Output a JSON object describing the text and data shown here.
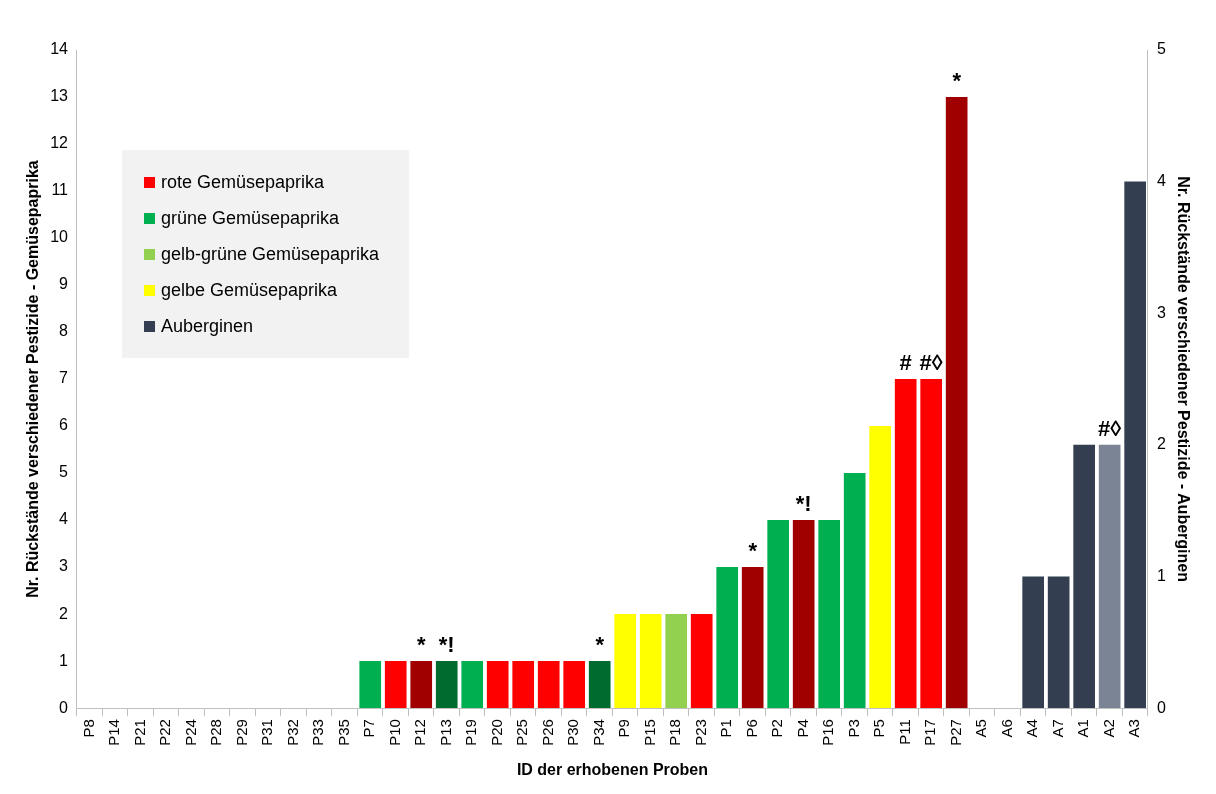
{
  "chart_data": {
    "type": "bar",
    "xlabel": "ID der erhobenen Proben",
    "ylabel": "Nr. Rückstände verschiedener Pestizide - Gemüsepaprika",
    "y2label": "Nr. Rückstände verschiedener Pestizide - Auberginen",
    "categories": [
      "P8",
      "P14",
      "P21",
      "P22",
      "P24",
      "P28",
      "P29",
      "P31",
      "P32",
      "P33",
      "P35",
      "P7",
      "P10",
      "P12",
      "P13",
      "P19",
      "P20",
      "P25",
      "P26",
      "P30",
      "P34",
      "P9",
      "P15",
      "P18",
      "P23",
      "P1",
      "P6",
      "P2",
      "P4",
      "P16",
      "P3",
      "P5",
      "P11",
      "P17",
      "P27",
      "A5",
      "A6",
      "A4",
      "A7",
      "A1",
      "A2",
      "A3"
    ],
    "series": [
      {
        "name": "rote Gemüsepaprika",
        "color": "#ff0000",
        "values": [
          null,
          null,
          null,
          null,
          null,
          null,
          null,
          null,
          null,
          null,
          null,
          null,
          1,
          1,
          null,
          null,
          1,
          1,
          1,
          1,
          null,
          null,
          null,
          null,
          2,
          null,
          3,
          null,
          4,
          null,
          null,
          null,
          7,
          7,
          13,
          null,
          null,
          null,
          null,
          null,
          null,
          null
        ],
        "colors": [
          null,
          null,
          null,
          null,
          null,
          null,
          null,
          null,
          null,
          null,
          null,
          null,
          "#ff0000",
          "#a00000",
          null,
          null,
          "#ff0000",
          "#ff0000",
          "#ff0000",
          "#ff0000",
          null,
          null,
          null,
          null,
          "#ff0000",
          null,
          "#a00000",
          null,
          "#a00000",
          null,
          null,
          null,
          "#ff0000",
          "#ff0000",
          "#a00000",
          null,
          null,
          null,
          null,
          null,
          null,
          null
        ]
      },
      {
        "name": "grüne Gemüsepaprika",
        "color": "#00b050",
        "values": [
          null,
          null,
          null,
          null,
          null,
          null,
          null,
          null,
          null,
          null,
          null,
          1,
          null,
          null,
          1,
          1,
          null,
          null,
          null,
          null,
          1,
          null,
          null,
          null,
          null,
          3,
          null,
          4,
          null,
          4,
          5,
          null,
          null,
          null,
          null,
          null,
          null,
          null,
          null,
          null,
          null,
          null
        ],
        "colors": [
          null,
          null,
          null,
          null,
          null,
          null,
          null,
          null,
          null,
          null,
          null,
          "#00b050",
          null,
          null,
          "#006b2e",
          "#00b050",
          null,
          null,
          null,
          null,
          "#006b2e",
          null,
          null,
          null,
          null,
          "#00b050",
          null,
          "#00b050",
          null,
          "#00b050",
          "#00b050",
          null,
          null,
          null,
          null,
          null,
          null,
          null,
          null,
          null,
          null,
          null
        ]
      },
      {
        "name": "gelb-grüne Gemüsepaprika",
        "color": "#92d050",
        "values": [
          null,
          null,
          null,
          null,
          null,
          null,
          null,
          null,
          null,
          null,
          null,
          null,
          null,
          null,
          null,
          null,
          null,
          null,
          null,
          null,
          null,
          null,
          null,
          2,
          null,
          null,
          null,
          null,
          null,
          null,
          null,
          null,
          null,
          null,
          null,
          null,
          null,
          null,
          null,
          null,
          null,
          null
        ]
      },
      {
        "name": "gelbe Gemüsepaprika",
        "color": "#ffff00",
        "values": [
          null,
          null,
          null,
          null,
          null,
          null,
          null,
          null,
          null,
          null,
          null,
          null,
          null,
          null,
          null,
          null,
          null,
          null,
          null,
          null,
          null,
          2,
          2,
          null,
          null,
          null,
          null,
          null,
          null,
          null,
          null,
          6,
          null,
          null,
          null,
          null,
          null,
          null,
          null,
          null,
          null,
          null
        ]
      },
      {
        "name": "Auberginen",
        "color": "#333f50",
        "axis": "y2",
        "values": [
          null,
          null,
          null,
          null,
          null,
          null,
          null,
          null,
          null,
          null,
          null,
          null,
          null,
          null,
          null,
          null,
          null,
          null,
          null,
          null,
          null,
          null,
          null,
          null,
          null,
          null,
          null,
          null,
          null,
          null,
          null,
          null,
          null,
          null,
          null,
          0,
          0,
          1,
          1,
          2,
          2,
          4
        ],
        "colors": [
          null,
          null,
          null,
          null,
          null,
          null,
          null,
          null,
          null,
          null,
          null,
          null,
          null,
          null,
          null,
          null,
          null,
          null,
          null,
          null,
          null,
          null,
          null,
          null,
          null,
          null,
          null,
          null,
          null,
          null,
          null,
          null,
          null,
          null,
          null,
          "#333f50",
          "#333f50",
          "#333f50",
          "#333f50",
          "#333f50",
          "#7a8494",
          "#333f50"
        ]
      }
    ],
    "ylim": [
      0,
      14
    ],
    "yticks": [
      0,
      1,
      2,
      3,
      4,
      5,
      6,
      7,
      8,
      9,
      10,
      11,
      12,
      13,
      14
    ],
    "y2lim": [
      0,
      5
    ],
    "y2ticks": [
      0,
      1,
      2,
      3,
      4,
      5
    ],
    "grid": false,
    "legend": "top left",
    "annotations": [
      {
        "text": "*",
        "x": "P12",
        "y": 1
      },
      {
        "text": "*!",
        "x": "P13",
        "y": 1
      },
      {
        "text": "*",
        "x": "P34",
        "y": 1
      },
      {
        "text": "*",
        "x": "P6",
        "y": 3
      },
      {
        "text": "*!",
        "x": "P4",
        "y": 4
      },
      {
        "text": "#",
        "x": "P11",
        "y": 7
      },
      {
        "text": "#◊",
        "x": "P17",
        "y": 7
      },
      {
        "text": "*",
        "x": "P27",
        "y": 13
      },
      {
        "text": "#◊",
        "x": "A2",
        "y": 5.6
      }
    ]
  }
}
